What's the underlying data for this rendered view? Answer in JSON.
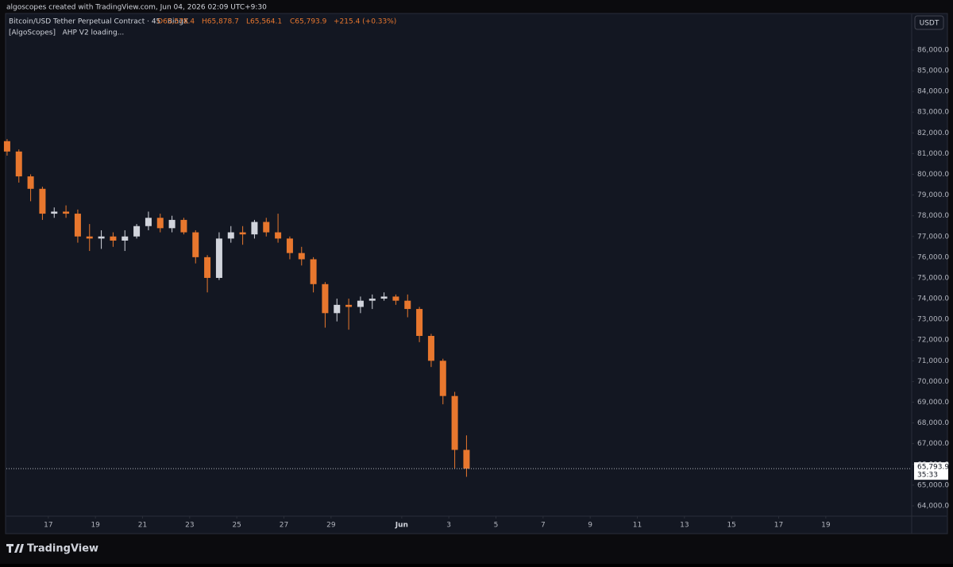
{
  "watermark": "algoscopes created with TradingView.com, Jun 04, 2026 02:09 UTC+9:30",
  "brand": "TradingView",
  "chart_data": {
    "type": "candlestick",
    "title": "Bitcoin/USD Tether Perpetual Contract · 45 · BingX",
    "ohlc_legend": [
      "O65,578.4",
      "H65,878.7",
      "L65,564.1",
      "C65,793.9"
    ],
    "change": "+215.4 (+0.33%)",
    "indicator": "[AlgoScopes]   AHP V2 loading...",
    "currency": "USDT",
    "last_price_label": "65,793.9",
    "countdown": "35:33",
    "up_color": "#d1d4dc",
    "down_color": "#e8772e",
    "x": [
      "2026-05-15T06:00",
      "2026-05-15T18:00",
      "2026-05-16T06:00",
      "2026-05-16T18:00",
      "2026-05-17T06:00",
      "2026-05-17T18:00",
      "2026-05-18T06:00",
      "2026-05-18T18:00",
      "2026-05-19T06:00",
      "2026-05-19T18:00",
      "2026-05-20T06:00",
      "2026-05-20T18:00",
      "2026-05-21T06:00",
      "2026-05-21T18:00",
      "2026-05-22T06:00",
      "2026-05-22T18:00",
      "2026-05-23T06:00",
      "2026-05-23T18:00",
      "2026-05-24T06:00",
      "2026-05-24T18:00",
      "2026-05-25T06:00",
      "2026-05-25T18:00",
      "2026-05-26T06:00",
      "2026-05-26T18:00",
      "2026-05-27T06:00",
      "2026-05-27T18:00",
      "2026-05-28T06:00",
      "2026-05-28T18:00",
      "2026-05-29T06:00",
      "2026-05-29T18:00",
      "2026-05-30T06:00",
      "2026-05-30T18:00",
      "2026-05-31T06:00",
      "2026-05-31T18:00",
      "2026-06-01T06:00",
      "2026-06-01T18:00",
      "2026-06-02T06:00",
      "2026-06-02T18:00",
      "2026-06-03T06:00",
      "2026-06-03T18:00"
    ],
    "open": [
      81600,
      81100,
      79900,
      79300,
      78100,
      78200,
      78100,
      77000,
      76900,
      77000,
      76800,
      77000,
      77500,
      77900,
      77400,
      77800,
      77200,
      76000,
      75000,
      76900,
      77200,
      77100,
      77700,
      77200,
      76900,
      76200,
      75900,
      74700,
      73300,
      73700,
      73600,
      73900,
      74000,
      74100,
      73900,
      73500,
      72200,
      71000,
      69300,
      66700
    ],
    "high": [
      81700,
      81200,
      80000,
      79400,
      78400,
      78500,
      78300,
      77600,
      77300,
      77200,
      77300,
      77600,
      78200,
      78100,
      78000,
      77900,
      77300,
      76100,
      77200,
      77500,
      77500,
      77800,
      77900,
      78100,
      77000,
      76500,
      76000,
      74800,
      74000,
      74000,
      74100,
      74200,
      74300,
      74200,
      74200,
      73600,
      72300,
      71100,
      69500,
      67400
    ],
    "low": [
      80900,
      79600,
      78700,
      77800,
      77900,
      77900,
      76700,
      76300,
      76400,
      76500,
      76300,
      76900,
      77300,
      77200,
      77200,
      77100,
      75700,
      74300,
      74900,
      76700,
      76600,
      76900,
      77000,
      76700,
      75900,
      75600,
      74300,
      72600,
      72900,
      72500,
      73300,
      73500,
      73900,
      73700,
      73100,
      71900,
      70700,
      68900,
      65800,
      65400
    ],
    "close": [
      81100,
      79900,
      79300,
      78100,
      78200,
      78100,
      77000,
      76900,
      77000,
      76800,
      77000,
      77500,
      77900,
      77400,
      77800,
      77200,
      76000,
      75000,
      76900,
      77200,
      77100,
      77700,
      77200,
      76900,
      76200,
      75900,
      74700,
      73300,
      73700,
      73600,
      73900,
      74000,
      74100,
      73900,
      73500,
      72200,
      71000,
      69300,
      66700,
      65793.9
    ],
    "xlim": [
      "2026-05-15T05:15",
      "2026-06-22T15:30"
    ],
    "xticks": [
      {
        "value": "2026-05-17T00:00",
        "label": "17"
      },
      {
        "value": "2026-05-19T00:00",
        "label": "19"
      },
      {
        "value": "2026-05-21T00:00",
        "label": "21"
      },
      {
        "value": "2026-05-23T00:00",
        "label": "23"
      },
      {
        "value": "2026-05-25T00:00",
        "label": "25"
      },
      {
        "value": "2026-05-27T00:00",
        "label": "27"
      },
      {
        "value": "2026-05-29T00:00",
        "label": "29"
      },
      {
        "value": "2026-06-01T00:00",
        "label": "Jun"
      },
      {
        "value": "2026-06-03T00:00",
        "label": "3"
      },
      {
        "value": "2026-06-05T00:00",
        "label": "5"
      },
      {
        "value": "2026-06-07T00:00",
        "label": "7"
      },
      {
        "value": "2026-06-09T00:00",
        "label": "9"
      },
      {
        "value": "2026-06-11T00:00",
        "label": "11"
      },
      {
        "value": "2026-06-13T00:00",
        "label": "13"
      },
      {
        "value": "2026-06-15T00:00",
        "label": "15"
      },
      {
        "value": "2026-06-17T00:00",
        "label": "17"
      },
      {
        "value": "2026-06-19T00:00",
        "label": "19"
      }
    ],
    "ylim": [
      63500,
      86880
    ],
    "yticks": [
      {
        "value": 64000,
        "label": "64,000.0"
      },
      {
        "value": 65000,
        "label": "65,000.0"
      },
      {
        "value": 66000,
        "label": "66,000.0"
      },
      {
        "value": 67000,
        "label": "67,000.0"
      },
      {
        "value": 68000,
        "label": "68,000.0"
      },
      {
        "value": 69000,
        "label": "69,000.0"
      },
      {
        "value": 70000,
        "label": "70,000.0"
      },
      {
        "value": 71000,
        "label": "71,000.0"
      },
      {
        "value": 72000,
        "label": "72,000.0"
      },
      {
        "value": 73000,
        "label": "73,000.0"
      },
      {
        "value": 74000,
        "label": "74,000.0"
      },
      {
        "value": 75000,
        "label": "75,000.0"
      },
      {
        "value": 76000,
        "label": "76,000.0"
      },
      {
        "value": 77000,
        "label": "77,000.0"
      },
      {
        "value": 78000,
        "label": "78,000.0"
      },
      {
        "value": 79000,
        "label": "79,000.0"
      },
      {
        "value": 80000,
        "label": "80,000.0"
      },
      {
        "value": 81000,
        "label": "81,000.0"
      },
      {
        "value": 82000,
        "label": "82,000.0"
      },
      {
        "value": 83000,
        "label": "83,000.0"
      },
      {
        "value": 84000,
        "label": "84,000.0"
      },
      {
        "value": 85000,
        "label": "85,000.0"
      },
      {
        "value": 86000,
        "label": "86,000.0"
      }
    ]
  }
}
